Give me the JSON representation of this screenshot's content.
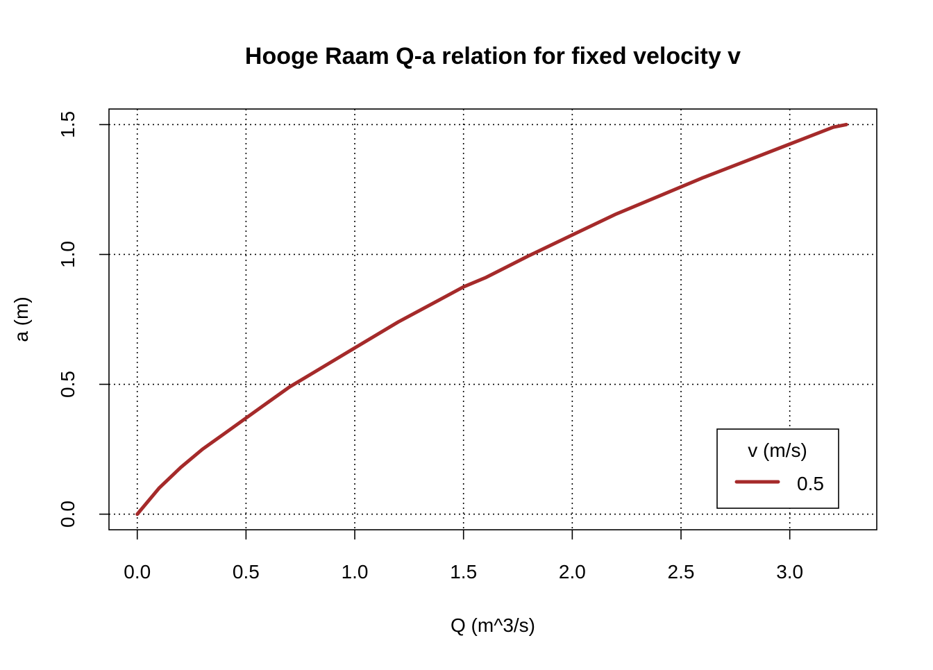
{
  "chart_data": {
    "type": "line",
    "title": "Hooge Raam Q-a relation for fixed velocity v",
    "xlabel": "Q (m^3/s)",
    "ylabel": "a (m)",
    "xlim": [
      -0.13,
      3.4
    ],
    "ylim": [
      -0.06,
      1.56
    ],
    "x_ticks": [
      0.0,
      0.5,
      1.0,
      1.5,
      2.0,
      2.5,
      3.0
    ],
    "x_tick_labels": [
      "0.0",
      "0.5",
      "1.0",
      "1.5",
      "2.0",
      "2.5",
      "3.0"
    ],
    "y_ticks": [
      0.0,
      0.5,
      1.0,
      1.5
    ],
    "y_tick_labels": [
      "0.0",
      "0.5",
      "1.0",
      "1.5"
    ],
    "grid": true,
    "legend": {
      "title": "v (m/s)",
      "placement": "bottom-right"
    },
    "series": [
      {
        "name": "0.5",
        "color": "#a52a2a",
        "x": [
          0.0,
          0.05,
          0.1,
          0.15,
          0.2,
          0.3,
          0.4,
          0.5,
          0.6,
          0.7,
          0.8,
          0.9,
          1.0,
          1.2,
          1.4,
          1.5,
          1.6,
          1.8,
          2.0,
          2.2,
          2.4,
          2.5,
          2.6,
          2.8,
          3.0,
          3.2,
          3.26
        ],
        "y": [
          0.0,
          0.05,
          0.1,
          0.14,
          0.18,
          0.25,
          0.31,
          0.37,
          0.43,
          0.49,
          0.54,
          0.59,
          0.64,
          0.74,
          0.83,
          0.875,
          0.91,
          0.995,
          1.075,
          1.155,
          1.225,
          1.26,
          1.295,
          1.36,
          1.425,
          1.49,
          1.5
        ]
      }
    ]
  }
}
